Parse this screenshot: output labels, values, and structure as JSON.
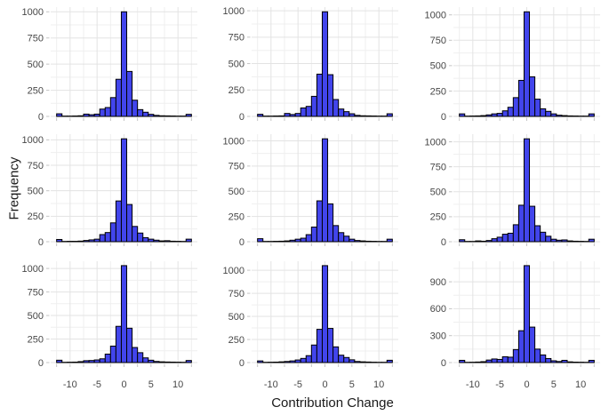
{
  "figure": {
    "xlabel": "Contribution Change",
    "ylabel": "Frequency"
  },
  "chart_data": {
    "type": "bar",
    "subtype": "histogram-grid",
    "grid": {
      "rows": 3,
      "cols": 3
    },
    "title": "",
    "xlabel": "Contribution Change",
    "ylabel": "Frequency",
    "xlim": [
      -13.6,
      13.6
    ],
    "bin_width": 1,
    "bin_centers": [
      -12,
      -11,
      -10,
      -9,
      -8,
      -7,
      -6,
      -5,
      -4,
      -3,
      -2,
      -1,
      0,
      1,
      2,
      3,
      4,
      5,
      6,
      7,
      8,
      9,
      10,
      11,
      12
    ],
    "x_major_ticks": [
      -10,
      -5,
      0,
      5,
      10
    ],
    "x_minor_ticks": [
      -12.5,
      -7.5,
      -2.5,
      2.5,
      7.5,
      12.5
    ],
    "x_tick_labels_only_bottom_row": true,
    "grid_on": true,
    "panels": [
      {
        "row": 1,
        "col": 1,
        "y_major": [
          0,
          250,
          500,
          750,
          1000
        ],
        "y_minor": [
          125,
          375,
          625,
          875
        ],
        "values": [
          25,
          3,
          3,
          4,
          6,
          22,
          16,
          22,
          70,
          85,
          180,
          355,
          1000,
          430,
          155,
          65,
          40,
          20,
          10,
          6,
          5,
          4,
          3,
          3,
          20
        ]
      },
      {
        "row": 1,
        "col": 2,
        "y_major": [
          0,
          250,
          500,
          750,
          1000
        ],
        "y_minor": [
          125,
          375,
          625,
          875
        ],
        "values": [
          20,
          3,
          3,
          4,
          5,
          28,
          18,
          28,
          80,
          95,
          190,
          400,
          990,
          395,
          160,
          70,
          45,
          25,
          10,
          6,
          5,
          4,
          3,
          3,
          25
        ]
      },
      {
        "row": 1,
        "col": 3,
        "y_major": [
          0,
          250,
          500,
          750,
          1000
        ],
        "y_minor": [
          125,
          375,
          625,
          875
        ],
        "values": [
          25,
          3,
          4,
          5,
          8,
          15,
          25,
          30,
          55,
          90,
          185,
          355,
          1030,
          390,
          170,
          75,
          50,
          25,
          12,
          8,
          5,
          4,
          3,
          3,
          25
        ]
      },
      {
        "row": 2,
        "col": 1,
        "y_major": [
          0,
          250,
          500,
          750,
          1000
        ],
        "y_minor": [
          125,
          375,
          625,
          875
        ],
        "values": [
          22,
          3,
          4,
          4,
          6,
          12,
          18,
          25,
          70,
          90,
          185,
          400,
          1010,
          365,
          150,
          85,
          40,
          25,
          15,
          8,
          10,
          5,
          4,
          3,
          25
        ]
      },
      {
        "row": 2,
        "col": 2,
        "y_major": [
          0,
          250,
          500,
          750,
          1000
        ],
        "y_minor": [
          125,
          375,
          625,
          875
        ],
        "values": [
          30,
          3,
          3,
          4,
          5,
          8,
          15,
          25,
          35,
          70,
          145,
          405,
          1020,
          375,
          160,
          90,
          55,
          25,
          12,
          8,
          5,
          4,
          3,
          3,
          25
        ]
      },
      {
        "row": 2,
        "col": 3,
        "y_major": [
          0,
          250,
          500,
          750,
          1000
        ],
        "y_minor": [
          125,
          375,
          625,
          875
        ],
        "values": [
          20,
          3,
          3,
          8,
          5,
          12,
          30,
          45,
          75,
          85,
          170,
          365,
          1030,
          355,
          160,
          95,
          55,
          25,
          15,
          18,
          8,
          5,
          4,
          3,
          25
        ]
      },
      {
        "row": 3,
        "col": 1,
        "y_major": [
          0,
          250,
          500,
          750,
          1000
        ],
        "y_minor": [
          125,
          375,
          625,
          875
        ],
        "values": [
          25,
          3,
          4,
          5,
          10,
          20,
          22,
          28,
          40,
          90,
          175,
          385,
          1030,
          365,
          160,
          105,
          50,
          25,
          12,
          8,
          6,
          5,
          4,
          3,
          22
        ]
      },
      {
        "row": 3,
        "col": 2,
        "y_major": [
          0,
          250,
          500,
          750,
          1000
        ],
        "y_minor": [
          125,
          375,
          625,
          875
        ],
        "values": [
          18,
          3,
          4,
          5,
          8,
          12,
          18,
          28,
          45,
          75,
          190,
          360,
          1050,
          370,
          170,
          80,
          55,
          30,
          12,
          8,
          6,
          4,
          3,
          3,
          25
        ]
      },
      {
        "row": 3,
        "col": 3,
        "y_major": [
          0,
          300,
          600,
          900
        ],
        "y_minor": [
          150,
          450,
          750,
          1050
        ],
        "values": [
          25,
          3,
          4,
          6,
          10,
          28,
          40,
          35,
          65,
          60,
          145,
          355,
          1080,
          395,
          150,
          85,
          45,
          20,
          12,
          25,
          8,
          5,
          4,
          3,
          25
        ]
      }
    ],
    "colors": {
      "bar_fill": "#4245EC",
      "bar_stroke": "#000000",
      "grid_major": "#e3e3e3",
      "grid_minor": "#efefef",
      "tick": "#c4c4c4",
      "tick_label": "#474747",
      "axis_title": "#1a1a1a",
      "background": "#ffffff"
    },
    "legend": null
  }
}
